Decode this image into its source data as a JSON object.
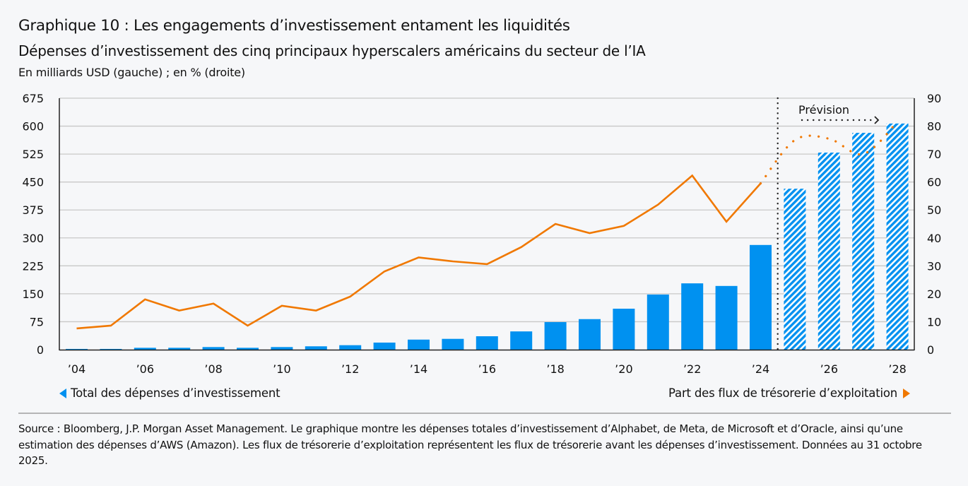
{
  "header": {
    "title": "Graphique 10 : Les engagements d’investissement entament les liquidités",
    "subtitle": "Dépenses d’investissement des cinq principaux hyperscalers américains du secteur de l’IA",
    "units": "En milliards USD (gauche) ; en %  (droite)"
  },
  "legend": {
    "left_label": "Total des dépenses d’investissement",
    "right_label": "Part des flux de trésorerie d’exploitation"
  },
  "forecast_label": "Prévision",
  "source": "Source : Bloomberg, J.P. Morgan Asset Management. Le graphique montre les dépenses totales d’investissement d’Alphabet, de Meta, de Microsoft et d’Oracle, ainsi qu’une estimation des dépenses d’AWS (Amazon). Les flux de trésorerie d’exploitation représentent les flux de trésorerie avant les dépenses d’investissement. Données au 31 octobre 2025.",
  "colors": {
    "bar": "#0091f0",
    "line": "#f07800",
    "grid": "#c8c8c8",
    "axis": "#222222"
  },
  "chart_data": {
    "type": "bar",
    "title": "Graphique 10 : Les engagements d’investissement entament les liquidités",
    "xlabel": "",
    "ylabel": "En milliards USD",
    "y2label": "en %",
    "categories": [
      "2004",
      "2005",
      "2006",
      "2007",
      "2008",
      "2009",
      "2010",
      "2011",
      "2012",
      "2013",
      "2014",
      "2015",
      "2016",
      "2017",
      "2018",
      "2019",
      "2020",
      "2021",
      "2022",
      "2023",
      "2024",
      "2025",
      "2026",
      "2027",
      "2028"
    ],
    "x_tick_labels": [
      "’04",
      "",
      "’06",
      "",
      "’08",
      "",
      "’10",
      "",
      "’12",
      "",
      "’14",
      "",
      "’16",
      "",
      "’18",
      "",
      "’20",
      "",
      "’22",
      "",
      "’24",
      "",
      "’26",
      "",
      "’28"
    ],
    "ylim": [
      0,
      675
    ],
    "yticks": [
      0,
      75,
      150,
      225,
      300,
      375,
      450,
      525,
      600,
      675
    ],
    "y2lim": [
      0,
      90
    ],
    "y2ticks": [
      0,
      10,
      20,
      30,
      40,
      50,
      60,
      70,
      80,
      90
    ],
    "grid": true,
    "forecast_start": "2025",
    "series": [
      {
        "name": "Total des dépenses d’investissement",
        "type": "bar",
        "axis": "left",
        "values": [
          2,
          2,
          5,
          5,
          7,
          5,
          7,
          9,
          12,
          19,
          27,
          29,
          36,
          49,
          74,
          82,
          110,
          148,
          178,
          171,
          281,
          432,
          529,
          582,
          607
        ],
        "forecast": [
          false,
          false,
          false,
          false,
          false,
          false,
          false,
          false,
          false,
          false,
          false,
          false,
          false,
          false,
          false,
          false,
          false,
          false,
          false,
          false,
          false,
          true,
          true,
          true,
          true
        ]
      },
      {
        "name": "Part des flux de trésorerie d’exploitation",
        "type": "line",
        "axis": "right",
        "values": [
          7.6,
          8.6,
          18.0,
          14.0,
          16.5,
          8.6,
          15.7,
          14.0,
          19.0,
          28.0,
          33.0,
          31.6,
          30.6,
          36.7,
          45.0,
          41.7,
          44.3,
          51.9,
          62.3,
          45.8,
          59.5,
          75.0,
          75.5,
          70.0,
          81.5
        ],
        "forecast": [
          false,
          false,
          false,
          false,
          false,
          false,
          false,
          false,
          false,
          false,
          false,
          false,
          false,
          false,
          false,
          false,
          false,
          false,
          false,
          false,
          false,
          true,
          true,
          true,
          true
        ]
      }
    ],
    "legend": [
      "left: Total des dépenses d’investissement",
      "right: Part des flux de trésorerie d’exploitation"
    ],
    "annotations": [
      "Prévision"
    ]
  }
}
